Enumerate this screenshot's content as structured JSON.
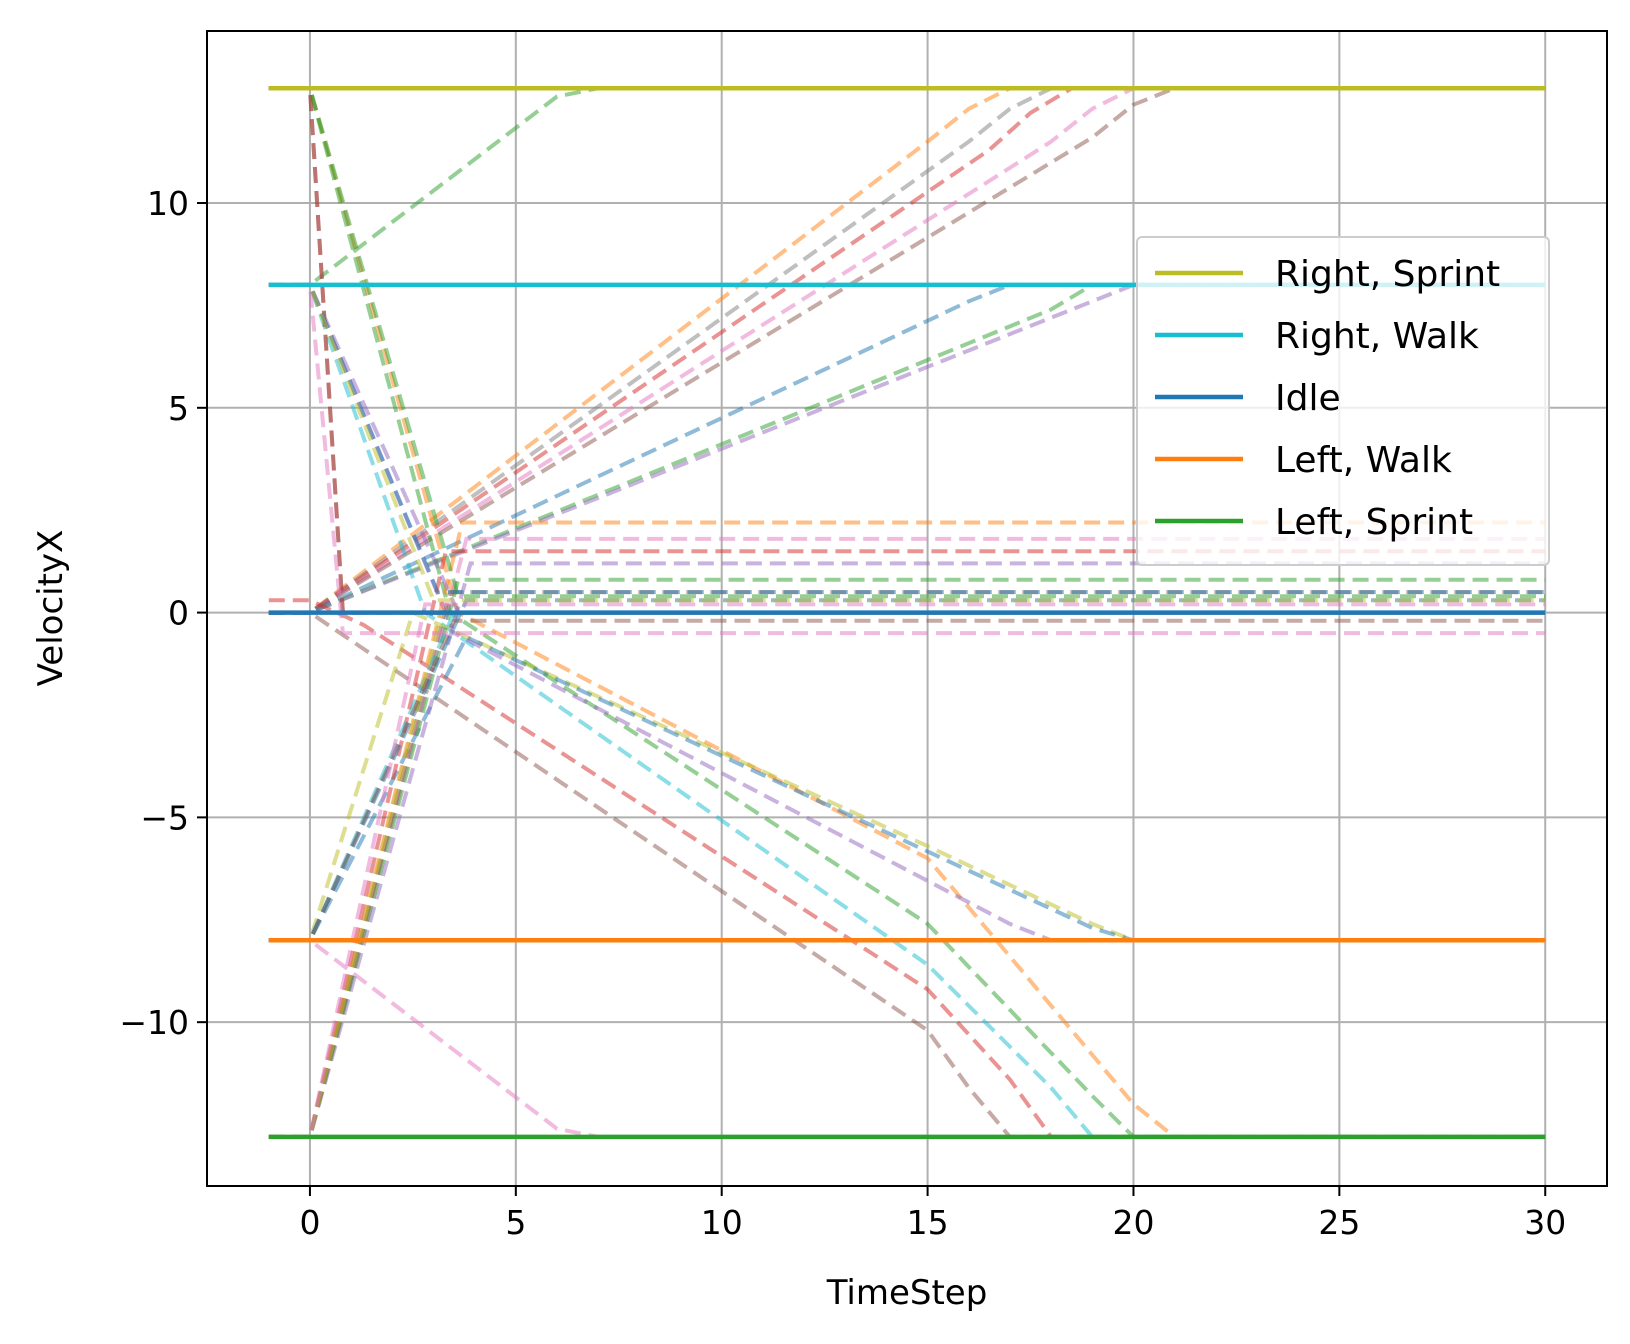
{
  "chart_data": {
    "type": "line",
    "title": "",
    "xlabel": "TimeStep",
    "ylabel": "VelocityX",
    "xlim": [
      -2.5,
      31.5
    ],
    "ylim": [
      -14.0,
      14.2
    ],
    "xticks": [
      0,
      5,
      10,
      15,
      20,
      25,
      30
    ],
    "yticks": [
      -10,
      -5,
      0,
      5,
      10
    ],
    "xtick_labels": [
      "0",
      "5",
      "10",
      "15",
      "20",
      "25",
      "30"
    ],
    "ytick_labels": [
      "−10",
      "−5",
      "0",
      "5",
      "10"
    ],
    "grid": true,
    "legend_position": "right",
    "series": [
      {
        "name": "Right, Sprint",
        "color": "#bcbd22",
        "style": "solid",
        "x": [
          -1,
          30
        ],
        "y": [
          12.8,
          12.8
        ]
      },
      {
        "name": "Right, Walk",
        "color": "#17becf",
        "style": "solid",
        "x": [
          -1,
          30
        ],
        "y": [
          8.0,
          8.0
        ]
      },
      {
        "name": "Idle",
        "color": "#1f77b4",
        "style": "solid",
        "x": [
          -1,
          30
        ],
        "y": [
          0.0,
          0.0
        ]
      },
      {
        "name": "Left, Walk",
        "color": "#ff7f0e",
        "style": "solid",
        "x": [
          -1,
          30
        ],
        "y": [
          -8.0,
          -8.0
        ]
      },
      {
        "name": "Left, Sprint",
        "color": "#2ca02c",
        "style": "solid",
        "x": [
          -1,
          30
        ],
        "y": [
          -12.8,
          -12.8
        ]
      }
    ],
    "transitions": [
      {
        "color": "#2ca02c",
        "x": [
          -1,
          0,
          6,
          7,
          30
        ],
        "y": [
          8.0,
          8.0,
          12.6,
          12.8,
          12.8
        ]
      },
      {
        "color": "#ff7f0e",
        "x": [
          -1,
          0,
          15,
          16,
          17,
          30
        ],
        "y": [
          0.0,
          0.0,
          11.5,
          12.3,
          12.8,
          12.8
        ]
      },
      {
        "color": "#7f7f7f",
        "x": [
          -1,
          0,
          16,
          17,
          18,
          30
        ],
        "y": [
          0.0,
          0.0,
          11.5,
          12.3,
          12.8,
          12.8
        ]
      },
      {
        "color": "#d62728",
        "x": [
          -1,
          0,
          16.5,
          17.5,
          18.5,
          30
        ],
        "y": [
          0.0,
          0.0,
          11.3,
          12.2,
          12.8,
          12.8
        ]
      },
      {
        "color": "#e377c2",
        "x": [
          -1,
          0,
          18,
          19,
          20,
          30
        ],
        "y": [
          0.0,
          0.0,
          11.5,
          12.3,
          12.8,
          12.8
        ]
      },
      {
        "color": "#8c564b",
        "x": [
          -1,
          0,
          19,
          20,
          21,
          30
        ],
        "y": [
          0.0,
          0.0,
          11.6,
          12.4,
          12.8,
          12.8
        ]
      },
      {
        "color": "#1f77b4",
        "x": [
          -1,
          0,
          16,
          17,
          30
        ],
        "y": [
          0.0,
          0.0,
          7.6,
          8.0,
          8.0
        ]
      },
      {
        "color": "#2ca02c",
        "x": [
          -1,
          0,
          18,
          19,
          30
        ],
        "y": [
          0.0,
          0.0,
          7.4,
          8.0,
          8.0
        ]
      },
      {
        "color": "#9467bd",
        "x": [
          -1,
          0,
          19,
          20,
          30
        ],
        "y": [
          0.0,
          0.0,
          7.6,
          8.0,
          8.0
        ]
      },
      {
        "color": "#ff7f0e",
        "x": [
          -1,
          0,
          3.6,
          15,
          19,
          20,
          21,
          30
        ],
        "y": [
          12.8,
          12.8,
          0.0,
          -6.0,
          -10.8,
          -12.0,
          -12.8,
          -12.8
        ]
      },
      {
        "color": "#2ca02c",
        "x": [
          -1,
          0,
          3.4,
          15,
          19,
          20,
          30
        ],
        "y": [
          12.8,
          12.8,
          0.0,
          -7.6,
          -11.8,
          -12.8,
          -12.8
        ]
      },
      {
        "color": "#17becf",
        "x": [
          -1,
          0,
          2.8,
          15,
          18,
          19,
          30
        ],
        "y": [
          8.0,
          8.0,
          0.0,
          -8.6,
          -11.6,
          -12.8,
          -12.8
        ]
      },
      {
        "color": "#d62728",
        "x": [
          -1,
          0,
          1.3,
          15,
          17,
          18,
          30
        ],
        "y": [
          0.3,
          0.3,
          -0.3,
          -9.2,
          -11.4,
          -12.8,
          -12.8
        ]
      },
      {
        "color": "#8c564b",
        "x": [
          -1,
          0,
          15,
          16,
          17,
          30
        ],
        "y": [
          0.0,
          0.0,
          -10.2,
          -11.6,
          -12.8,
          -12.8
        ]
      },
      {
        "color": "#e377c2",
        "x": [
          -1,
          0,
          6,
          7,
          30
        ],
        "y": [
          -8.0,
          -8.0,
          -12.6,
          -12.8,
          -12.8
        ]
      },
      {
        "color": "#bcbd22",
        "x": [
          -1,
          0,
          2.5,
          15,
          19,
          20,
          30
        ],
        "y": [
          -8.0,
          -8.0,
          0.0,
          -5.7,
          -7.6,
          -8.0,
          -8.0
        ]
      },
      {
        "color": "#1f77b4",
        "x": [
          -1,
          0,
          3.8,
          19,
          20,
          30
        ],
        "y": [
          -8.0,
          -8.0,
          -0.6,
          -7.7,
          -8.0,
          -8.0
        ]
      },
      {
        "color": "#9467bd",
        "x": [
          -1,
          0,
          3.5,
          17,
          18,
          30
        ],
        "y": [
          8.0,
          8.0,
          -0.5,
          -7.6,
          -8.0,
          -8.0
        ]
      },
      {
        "color": "#ff7f0e",
        "x": [
          -1,
          0,
          3.7,
          30
        ],
        "y": [
          -12.8,
          -12.8,
          2.2,
          2.2
        ]
      },
      {
        "color": "#d62728",
        "x": [
          -1,
          0,
          3.3,
          30
        ],
        "y": [
          -12.8,
          -12.8,
          1.5,
          1.5
        ]
      },
      {
        "color": "#e377c2",
        "x": [
          -1,
          0,
          3.8,
          30
        ],
        "y": [
          -12.8,
          -12.8,
          1.8,
          1.8
        ]
      },
      {
        "color": "#9467bd",
        "x": [
          -1,
          0,
          3.9,
          30
        ],
        "y": [
          -12.8,
          -12.8,
          1.2,
          1.2
        ]
      },
      {
        "color": "#2ca02c",
        "x": [
          -1,
          0,
          3.6,
          30
        ],
        "y": [
          -12.8,
          -12.8,
          0.8,
          0.8
        ]
      },
      {
        "color": "#8c564b",
        "x": [
          -1,
          0,
          3.4,
          30
        ],
        "y": [
          -12.8,
          -12.8,
          0.5,
          0.5
        ]
      },
      {
        "color": "#17becf",
        "x": [
          -1,
          0,
          3.5,
          30
        ],
        "y": [
          -8.0,
          -8.0,
          0.0,
          0.0
        ]
      },
      {
        "color": "#1f77b4",
        "x": [
          -1,
          0,
          3.8,
          30
        ],
        "y": [
          -8.0,
          -8.0,
          0.3,
          0.3
        ]
      },
      {
        "color": "#bcbd22",
        "x": [
          -1,
          0,
          3.2,
          30
        ],
        "y": [
          -12.8,
          -12.8,
          0.0,
          0.0
        ]
      },
      {
        "color": "#8c564b",
        "x": [
          -1,
          0,
          3.5,
          30
        ],
        "y": [
          -8.0,
          -8.0,
          -0.2,
          -0.2
        ]
      },
      {
        "color": "#e377c2",
        "x": [
          -1,
          0,
          2.8,
          30
        ],
        "y": [
          -12.8,
          -12.8,
          0.2,
          0.2
        ]
      },
      {
        "color": "#d62728",
        "x": [
          -1,
          0,
          0.8,
          30
        ],
        "y": [
          12.8,
          12.8,
          0.0,
          0.0
        ]
      },
      {
        "color": "#8c564b",
        "x": [
          -1,
          0,
          0.8,
          30
        ],
        "y": [
          12.8,
          12.8,
          0.0,
          0.0
        ]
      },
      {
        "color": "#2ca02c",
        "x": [
          -1,
          0,
          3.6,
          30
        ],
        "y": [
          12.8,
          12.8,
          0.4,
          0.4
        ]
      },
      {
        "color": "#e377c2",
        "x": [
          -1,
          0,
          0.8,
          30
        ],
        "y": [
          8.0,
          8.0,
          -0.5,
          -0.5
        ]
      },
      {
        "color": "#9467bd",
        "x": [
          -1,
          0,
          3.6,
          30
        ],
        "y": [
          8.0,
          8.0,
          0.0,
          0.0
        ]
      },
      {
        "color": "#1f77b4",
        "x": [
          -1,
          0,
          3.1,
          30
        ],
        "y": [
          8.0,
          8.0,
          0.5,
          0.5
        ]
      },
      {
        "color": "#bcbd22",
        "x": [
          -1,
          0,
          3.0,
          30
        ],
        "y": [
          8.0,
          8.0,
          0.3,
          0.3
        ]
      }
    ]
  }
}
